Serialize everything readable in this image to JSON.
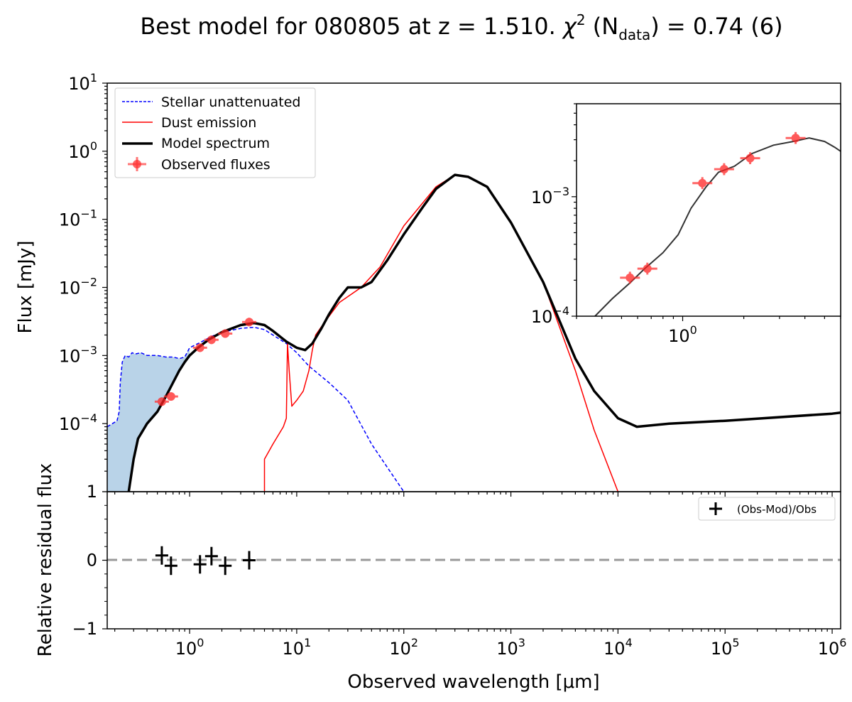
{
  "chart_data": {
    "type": "line",
    "title": {
      "prefix": "Best model for 080805 at z = 1.510. ",
      "chi": "χ",
      "chi_sup": "2",
      "open": " (N",
      "sub": "data",
      "close": ") = 0.74 (6)"
    },
    "main_panel": {
      "xlabel": "Observed wavelength [μm]",
      "ylabel": "Flux [mJy]",
      "xlim": [
        0.17,
        1200000
      ],
      "ylim": [
        1e-05,
        10
      ],
      "xscale": "log",
      "yscale": "log",
      "x_ticks": [
        {
          "base": "10",
          "exp": "0"
        },
        {
          "base": "10",
          "exp": "1"
        },
        {
          "base": "10",
          "exp": "2"
        },
        {
          "base": "10",
          "exp": "3"
        },
        {
          "base": "10",
          "exp": "4"
        },
        {
          "base": "10",
          "exp": "5"
        },
        {
          "base": "10",
          "exp": "6"
        }
      ],
      "y_ticks": [
        {
          "base": "10",
          "exp": "−4"
        },
        {
          "base": "10",
          "exp": "−3"
        },
        {
          "base": "10",
          "exp": "−2"
        },
        {
          "base": "10",
          "exp": "−1"
        },
        {
          "base": "10",
          "exp": "0"
        },
        {
          "base": "10",
          "exp": "1"
        }
      ],
      "series": [
        {
          "name": "Stellar unattenuated",
          "color": "#0000ff",
          "style": "dashed",
          "points": [
            [
              0.17,
              9e-05
            ],
            [
              0.19,
              0.0001
            ],
            [
              0.21,
              0.00011
            ],
            [
              0.22,
              0.00015
            ],
            [
              0.225,
              0.0004
            ],
            [
              0.235,
              0.0008
            ],
            [
              0.25,
              0.001
            ],
            [
              0.27,
              0.00095
            ],
            [
              0.29,
              0.0011
            ],
            [
              0.31,
              0.00105
            ],
            [
              0.35,
              0.0011
            ],
            [
              0.4,
              0.001
            ],
            [
              0.5,
              0.001
            ],
            [
              0.6,
              0.00095
            ],
            [
              0.7,
              0.00095
            ],
            [
              0.8,
              0.0009
            ],
            [
              0.9,
              0.00095
            ],
            [
              1.0,
              0.0013
            ],
            [
              1.3,
              0.0016
            ],
            [
              1.6,
              0.0019
            ],
            [
              2.0,
              0.0022
            ],
            [
              3.0,
              0.0025
            ],
            [
              4.0,
              0.0026
            ],
            [
              5.0,
              0.0024
            ],
            [
              6.0,
              0.002
            ],
            [
              8.0,
              0.0015
            ],
            [
              10,
              0.0011
            ],
            [
              13,
              0.0007
            ],
            [
              20,
              0.0004
            ],
            [
              30,
              0.00022
            ],
            [
              50,
              5e-05
            ],
            [
              100,
              1e-05
            ]
          ]
        },
        {
          "name": "Dust emission",
          "color": "#ff0000",
          "style": "solid",
          "points": [
            [
              5,
              1e-05
            ],
            [
              5,
              3e-05
            ],
            [
              6,
              5e-05
            ],
            [
              7.5,
              9e-05
            ],
            [
              8,
              0.00012
            ],
            [
              8.2,
              0.0015
            ],
            [
              8.5,
              0.0006
            ],
            [
              9,
              0.00018
            ],
            [
              10,
              0.00022
            ],
            [
              11.5,
              0.0003
            ],
            [
              13,
              0.0006
            ],
            [
              14,
              0.0012
            ],
            [
              15,
              0.002
            ],
            [
              18,
              0.003
            ],
            [
              25,
              0.006
            ],
            [
              40,
              0.01
            ],
            [
              60,
              0.02
            ],
            [
              100,
              0.08
            ],
            [
              200,
              0.3
            ],
            [
              300,
              0.45
            ],
            [
              400,
              0.43
            ],
            [
              600,
              0.3
            ],
            [
              1000,
              0.09
            ],
            [
              2000,
              0.012
            ],
            [
              4000,
              0.0006
            ],
            [
              6000,
              8e-05
            ],
            [
              10000,
              1e-05
            ]
          ]
        },
        {
          "name": "Model spectrum",
          "color": "#000000",
          "style": "solid",
          "points": [
            [
              0.27,
              1e-05
            ],
            [
              0.3,
              3e-05
            ],
            [
              0.33,
              6e-05
            ],
            [
              0.4,
              0.0001
            ],
            [
              0.5,
              0.00015
            ],
            [
              0.6,
              0.00025
            ],
            [
              0.7,
              0.0004
            ],
            [
              0.8,
              0.0006
            ],
            [
              0.9,
              0.0008
            ],
            [
              1.0,
              0.001
            ],
            [
              1.2,
              0.0013
            ],
            [
              1.5,
              0.0017
            ],
            [
              2.0,
              0.0022
            ],
            [
              3.0,
              0.0028
            ],
            [
              4.0,
              0.003
            ],
            [
              5.0,
              0.0028
            ],
            [
              6.0,
              0.0023
            ],
            [
              8.0,
              0.0016
            ],
            [
              10,
              0.0013
            ],
            [
              12,
              0.0012
            ],
            [
              14,
              0.0015
            ],
            [
              17,
              0.0025
            ],
            [
              20,
              0.004
            ],
            [
              25,
              0.007
            ],
            [
              30,
              0.01
            ],
            [
              40,
              0.01
            ],
            [
              50,
              0.012
            ],
            [
              70,
              0.025
            ],
            [
              100,
              0.06
            ],
            [
              150,
              0.15
            ],
            [
              200,
              0.28
            ],
            [
              300,
              0.45
            ],
            [
              400,
              0.42
            ],
            [
              600,
              0.3
            ],
            [
              1000,
              0.09
            ],
            [
              2000,
              0.012
            ],
            [
              4000,
              0.0009
            ],
            [
              6000,
              0.0003
            ],
            [
              10000,
              0.00012
            ],
            [
              15000,
              9e-05
            ],
            [
              30000,
              0.0001
            ],
            [
              100000,
              0.00011
            ],
            [
              1000000,
              0.00014
            ],
            [
              1200000,
              0.000145
            ]
          ]
        }
      ],
      "observed_fluxes": [
        {
          "x": 0.55,
          "y": 0.00021
        },
        {
          "x": 0.67,
          "y": 0.00025
        },
        {
          "x": 1.25,
          "y": 0.0013
        },
        {
          "x": 1.6,
          "y": 0.0017
        },
        {
          "x": 2.15,
          "y": 0.0021
        },
        {
          "x": 3.6,
          "y": 0.0031
        }
      ],
      "legend": {
        "position": "upper-left",
        "entries": [
          "Stellar unattenuated",
          "Dust emission",
          "Model spectrum",
          "Observed fluxes"
        ]
      }
    },
    "inset_panel": {
      "xlim": [
        0.3,
        6
      ],
      "ylim": [
        0.0001,
        0.006
      ],
      "xscale": "log",
      "yscale": "log",
      "x_ticks": [
        {
          "base": "10",
          "exp": "0"
        }
      ],
      "y_ticks": [
        {
          "base": "10",
          "exp": "−4"
        },
        {
          "base": "10",
          "exp": "−3"
        }
      ],
      "series": [
        {
          "name": "Model spectrum (zoom)",
          "color": "#333333",
          "points": [
            [
              0.37,
              0.0001
            ],
            [
              0.45,
              0.00014
            ],
            [
              0.55,
              0.00019
            ],
            [
              0.65,
              0.00025
            ],
            [
              0.8,
              0.00034
            ],
            [
              0.95,
              0.00048
            ],
            [
              1.1,
              0.0008
            ],
            [
              1.3,
              0.0012
            ],
            [
              1.5,
              0.0016
            ],
            [
              1.8,
              0.0018
            ],
            [
              2.2,
              0.0023
            ],
            [
              2.8,
              0.0027
            ],
            [
              3.5,
              0.0029
            ],
            [
              4.2,
              0.0031
            ],
            [
              5.0,
              0.0029
            ],
            [
              5.6,
              0.0026
            ],
            [
              6.0,
              0.0024
            ]
          ]
        }
      ],
      "observed_fluxes": [
        {
          "x": 0.55,
          "y": 0.00021
        },
        {
          "x": 0.67,
          "y": 0.00025
        },
        {
          "x": 1.25,
          "y": 0.0013
        },
        {
          "x": 1.6,
          "y": 0.0017
        },
        {
          "x": 2.15,
          "y": 0.0021
        },
        {
          "x": 3.6,
          "y": 0.0031
        }
      ]
    },
    "residual_panel": {
      "ylabel": "Relative residual flux",
      "xlim": [
        0.17,
        1200000
      ],
      "ylim": [
        -1,
        1
      ],
      "y_ticks": [
        "1",
        "0",
        "−1"
      ],
      "legend": "(Obs-Mod)/Obs",
      "points": [
        {
          "x": 0.55,
          "y": 0.07
        },
        {
          "x": 0.67,
          "y": -0.08
        },
        {
          "x": 1.25,
          "y": -0.06
        },
        {
          "x": 1.6,
          "y": 0.06
        },
        {
          "x": 2.15,
          "y": -0.08
        },
        {
          "x": 3.6,
          "y": 0.0
        }
      ]
    }
  }
}
